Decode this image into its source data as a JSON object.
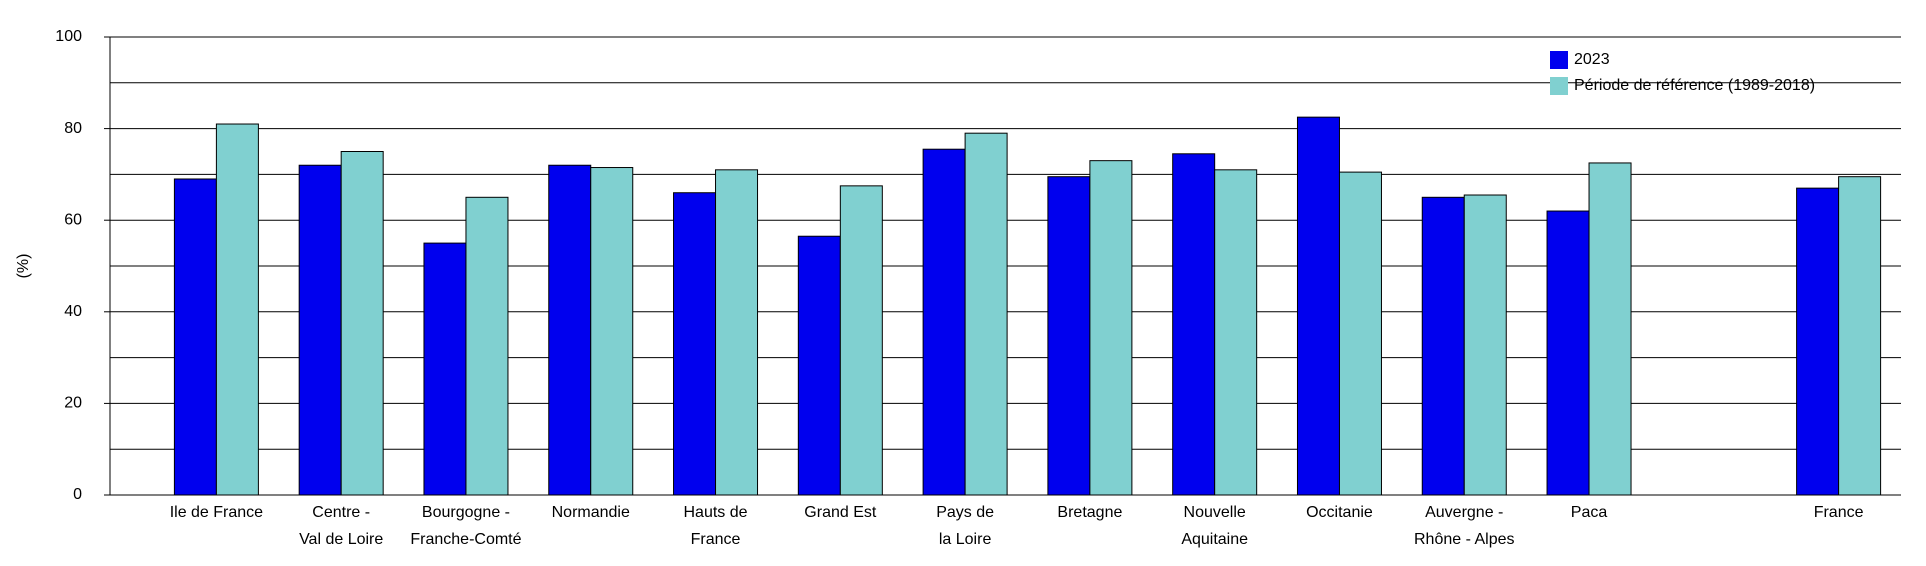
{
  "chart_data": {
    "type": "bar",
    "y_label": "(%)",
    "categories": [
      "Ile de France",
      "Centre -\nVal de Loire",
      "Bourgogne -\nFranche-Comté",
      "Normandie",
      "Hauts de\nFrance",
      "Grand Est",
      "Pays de\nla Loire",
      "Bretagne",
      "Nouvelle\nAquitaine",
      "Occitanie",
      "Auvergne -\nRhône - Alpes",
      "Paca",
      null,
      "France"
    ],
    "series": [
      {
        "name": "2023",
        "color": "#0000ee",
        "values": [
          69,
          72,
          55,
          72,
          66,
          56.5,
          75.5,
          69.5,
          74.5,
          82.5,
          65,
          62,
          null,
          67
        ]
      },
      {
        "name": "Période de référence (1989-2018)",
        "color": "#80d0d0",
        "values": [
          81,
          75,
          65,
          71.5,
          71,
          67.5,
          79,
          73,
          71,
          70.5,
          65.5,
          72.5,
          null,
          69.5
        ]
      }
    ],
    "ylim": [
      0,
      100
    ],
    "yticks": [
      0,
      20,
      40,
      60,
      80,
      100
    ],
    "yminor": [
      10,
      30,
      50,
      70,
      90
    ],
    "grid": true,
    "legend": "top-right"
  }
}
